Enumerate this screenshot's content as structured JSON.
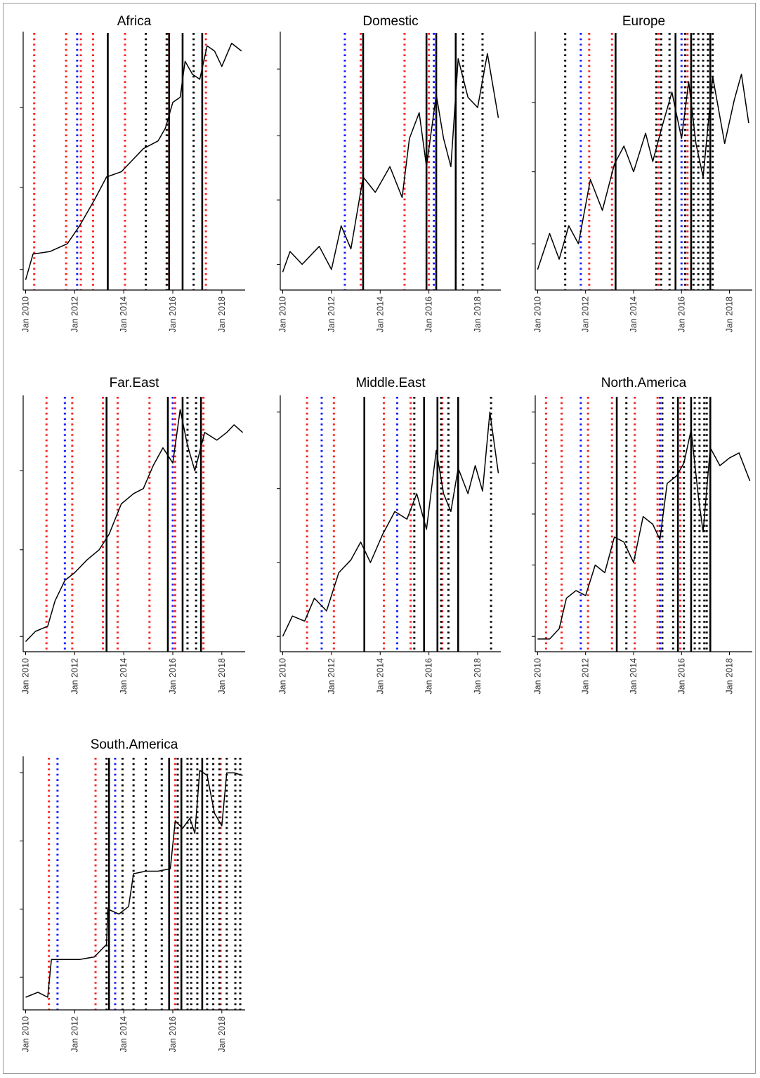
{
  "figure": {
    "type": "small-multiples",
    "rows": 3,
    "cols": 3
  },
  "chart_data": [
    {
      "type": "line",
      "title": "Africa",
      "x_tick_labels": [
        "Jan 2010",
        "Jan 2012",
        "Jan 2014",
        "Jan 2016",
        "Jan 2018"
      ],
      "x_range": [
        2009.9,
        2018.95
      ],
      "y_range": [
        0,
        1
      ],
      "y_ticks_unlabeled": [
        0.08,
        0.4,
        0.71
      ],
      "series_points": [
        [
          2010,
          0.04
        ],
        [
          2010.3,
          0.14
        ],
        [
          2011,
          0.15
        ],
        [
          2011.7,
          0.18
        ],
        [
          2012.2,
          0.25
        ],
        [
          2012.8,
          0.35
        ],
        [
          2013.3,
          0.44
        ],
        [
          2013.9,
          0.46
        ],
        [
          2014.3,
          0.5
        ],
        [
          2014.8,
          0.55
        ],
        [
          2015.4,
          0.58
        ],
        [
          2015.7,
          0.63
        ],
        [
          2016,
          0.73
        ],
        [
          2016.3,
          0.75
        ],
        [
          2016.5,
          0.89
        ],
        [
          2016.8,
          0.84
        ],
        [
          2017.1,
          0.82
        ],
        [
          2017.4,
          0.95
        ],
        [
          2017.7,
          0.93
        ],
        [
          2018,
          0.87
        ],
        [
          2018.4,
          0.96
        ],
        [
          2018.8,
          0.93
        ]
      ],
      "events": {
        "solid_black": [
          2013.35,
          2015.85,
          2016.4,
          2017.2
        ],
        "dotted_red": [
          2010.35,
          2011.65,
          2012.25,
          2012.75,
          2014.05,
          2015.8,
          2017.35
        ],
        "dotted_blue": [
          2012.1
        ],
        "dotted_black": [
          2014.9,
          2015.75,
          2016.85
        ]
      }
    },
    {
      "type": "line",
      "title": "Domestic",
      "x_tick_labels": [
        "Jan 2010",
        "Jan 2012",
        "Jan 2014",
        "Jan 2016",
        "Jan 2018"
      ],
      "x_range": [
        2009.9,
        2018.95
      ],
      "y_range": [
        0,
        1
      ],
      "y_ticks_unlabeled": [
        0.1,
        0.35,
        0.6,
        0.86
      ],
      "series_points": [
        [
          2010,
          0.07
        ],
        [
          2010.3,
          0.15
        ],
        [
          2010.8,
          0.1
        ],
        [
          2011.5,
          0.17
        ],
        [
          2012,
          0.08
        ],
        [
          2012.4,
          0.25
        ],
        [
          2012.8,
          0.16
        ],
        [
          2013.3,
          0.44
        ],
        [
          2013.8,
          0.38
        ],
        [
          2014.4,
          0.48
        ],
        [
          2014.9,
          0.36
        ],
        [
          2015.2,
          0.59
        ],
        [
          2015.6,
          0.69
        ],
        [
          2015.9,
          0.48
        ],
        [
          2016.3,
          0.76
        ],
        [
          2016.6,
          0.59
        ],
        [
          2016.9,
          0.48
        ],
        [
          2017.2,
          0.9
        ],
        [
          2017.6,
          0.75
        ],
        [
          2018,
          0.71
        ],
        [
          2018.4,
          0.92
        ],
        [
          2018.85,
          0.67
        ]
      ],
      "events": {
        "solid_black": [
          2013.3,
          2015.9,
          2016.3,
          2017.1
        ],
        "dotted_red": [
          2013.2,
          2015.0,
          2016.0
        ],
        "dotted_blue": [
          2012.55,
          2016.2
        ],
        "dotted_black": [
          2017.4,
          2018.2
        ]
      }
    },
    {
      "type": "line",
      "title": "Europe",
      "x_tick_labels": [
        "Jan 2010",
        "Jan 2012",
        "Jan 2014",
        "Jan 2016",
        "Jan 2018"
      ],
      "x_range": [
        2009.9,
        2018.95
      ],
      "y_range": [
        0,
        1
      ],
      "y_ticks_unlabeled": [
        0.18,
        0.46,
        0.73
      ],
      "series_points": [
        [
          2010,
          0.08
        ],
        [
          2010.5,
          0.22
        ],
        [
          2010.9,
          0.12
        ],
        [
          2011.3,
          0.25
        ],
        [
          2011.7,
          0.18
        ],
        [
          2012.2,
          0.43
        ],
        [
          2012.7,
          0.31
        ],
        [
          2013.2,
          0.49
        ],
        [
          2013.6,
          0.56
        ],
        [
          2014,
          0.46
        ],
        [
          2014.5,
          0.61
        ],
        [
          2014.8,
          0.5
        ],
        [
          2015.2,
          0.64
        ],
        [
          2015.6,
          0.77
        ],
        [
          2016,
          0.59
        ],
        [
          2016.3,
          0.81
        ],
        [
          2016.6,
          0.57
        ],
        [
          2016.9,
          0.44
        ],
        [
          2017.3,
          0.83
        ],
        [
          2017.8,
          0.57
        ],
        [
          2018.2,
          0.74
        ],
        [
          2018.5,
          0.84
        ],
        [
          2018.8,
          0.65
        ]
      ],
      "events": {
        "solid_black": [
          2013.25,
          2015.75,
          2016.4,
          2017.2
        ],
        "dotted_red": [
          2012.15,
          2013.1,
          2015.05,
          2016.25
        ],
        "dotted_blue": [
          2011.8,
          2016.0
        ],
        "dotted_black": [
          2011.15,
          2014.95,
          2015.15,
          2015.5,
          2016.15,
          2016.5,
          2016.7,
          2016.9,
          2017.1,
          2017.3
        ]
      }
    },
    {
      "type": "line",
      "title": "Far.East",
      "x_tick_labels": [
        "Jan 2010",
        "Jan 2012",
        "Jan 2014",
        "Jan 2016",
        "Jan 2018"
      ],
      "x_range": [
        2009.9,
        2018.95
      ],
      "y_range": [
        0,
        1
      ],
      "y_ticks_unlabeled": [
        0.06,
        0.4,
        0.71
      ],
      "series_points": [
        [
          2010,
          0.04
        ],
        [
          2010.4,
          0.08
        ],
        [
          2010.9,
          0.1
        ],
        [
          2011.2,
          0.2
        ],
        [
          2011.6,
          0.28
        ],
        [
          2012,
          0.31
        ],
        [
          2012.5,
          0.36
        ],
        [
          2013,
          0.4
        ],
        [
          2013.4,
          0.46
        ],
        [
          2013.9,
          0.58
        ],
        [
          2014.4,
          0.62
        ],
        [
          2014.8,
          0.64
        ],
        [
          2015.2,
          0.73
        ],
        [
          2015.6,
          0.8
        ],
        [
          2016,
          0.74
        ],
        [
          2016.3,
          0.95
        ],
        [
          2016.6,
          0.81
        ],
        [
          2016.9,
          0.71
        ],
        [
          2017.3,
          0.86
        ],
        [
          2017.8,
          0.83
        ],
        [
          2018.2,
          0.86
        ],
        [
          2018.5,
          0.89
        ],
        [
          2018.85,
          0.86
        ]
      ],
      "events": {
        "solid_black": [
          2013.3,
          2015.8,
          2016.4,
          2017.15
        ],
        "dotted_red": [
          2010.85,
          2011.9,
          2013.15,
          2013.75,
          2015.05,
          2016.1,
          2017.25
        ],
        "dotted_blue": [
          2011.6,
          2016.0
        ],
        "dotted_black": [
          2016.6,
          2016.95
        ]
      }
    },
    {
      "type": "line",
      "title": "Middle.East",
      "x_tick_labels": [
        "Jan 2010",
        "Jan 2012",
        "Jan 2014",
        "Jan 2016",
        "Jan 2018"
      ],
      "x_range": [
        2009.9,
        2018.95
      ],
      "y_range": [
        0,
        1
      ],
      "y_ticks_unlabeled": [
        0.06,
        0.35,
        0.64,
        0.94
      ],
      "series_points": [
        [
          2010,
          0.06
        ],
        [
          2010.4,
          0.14
        ],
        [
          2010.9,
          0.12
        ],
        [
          2011.3,
          0.21
        ],
        [
          2011.8,
          0.16
        ],
        [
          2012.3,
          0.31
        ],
        [
          2012.8,
          0.36
        ],
        [
          2013.2,
          0.43
        ],
        [
          2013.6,
          0.35
        ],
        [
          2014.1,
          0.46
        ],
        [
          2014.6,
          0.55
        ],
        [
          2015.1,
          0.52
        ],
        [
          2015.5,
          0.62
        ],
        [
          2015.9,
          0.48
        ],
        [
          2016.3,
          0.79
        ],
        [
          2016.6,
          0.62
        ],
        [
          2016.9,
          0.55
        ],
        [
          2017.2,
          0.72
        ],
        [
          2017.6,
          0.62
        ],
        [
          2017.9,
          0.73
        ],
        [
          2018.2,
          0.63
        ],
        [
          2018.5,
          0.94
        ],
        [
          2018.85,
          0.7
        ]
      ],
      "events": {
        "solid_black": [
          2013.35,
          2015.8,
          2016.35,
          2017.2
        ],
        "dotted_red": [
          2011.0,
          2012.1,
          2014.15,
          2015.25,
          2016.55
        ],
        "dotted_blue": [
          2011.6,
          2014.7
        ],
        "dotted_black": [
          2015.4,
          2016.5,
          2016.8,
          2018.55
        ]
      }
    },
    {
      "type": "line",
      "title": "North.America",
      "x_tick_labels": [
        "Jan 2010",
        "Jan 2012",
        "Jan 2014",
        "Jan 2016",
        "Jan 2018"
      ],
      "x_range": [
        2009.9,
        2018.95
      ],
      "y_range": [
        0,
        1
      ],
      "y_ticks_unlabeled": [
        0.06,
        0.34,
        0.54,
        0.74,
        0.94
      ],
      "series_points": [
        [
          2010,
          0.05
        ],
        [
          2010.5,
          0.05
        ],
        [
          2010.9,
          0.09
        ],
        [
          2011.2,
          0.21
        ],
        [
          2011.6,
          0.24
        ],
        [
          2012,
          0.22
        ],
        [
          2012.4,
          0.34
        ],
        [
          2012.8,
          0.31
        ],
        [
          2013.2,
          0.45
        ],
        [
          2013.6,
          0.43
        ],
        [
          2014,
          0.35
        ],
        [
          2014.4,
          0.53
        ],
        [
          2014.8,
          0.5
        ],
        [
          2015.1,
          0.44
        ],
        [
          2015.4,
          0.66
        ],
        [
          2015.8,
          0.69
        ],
        [
          2016.1,
          0.74
        ],
        [
          2016.4,
          0.87
        ],
        [
          2016.7,
          0.61
        ],
        [
          2016.9,
          0.47
        ],
        [
          2017.2,
          0.8
        ],
        [
          2017.6,
          0.73
        ],
        [
          2018,
          0.76
        ],
        [
          2018.4,
          0.78
        ],
        [
          2018.85,
          0.67
        ]
      ],
      "events": {
        "solid_black": [
          2013.3,
          2015.85,
          2016.4,
          2017.2
        ],
        "dotted_red": [
          2010.35,
          2011.0,
          2012.1,
          2013.1,
          2014.05,
          2015.0,
          2015.95
        ],
        "dotted_blue": [
          2011.8,
          2015.1
        ],
        "dotted_black": [
          2013.7,
          2015.2,
          2015.65,
          2016.1,
          2016.55,
          2016.75,
          2016.95,
          2017.05
        ]
      }
    },
    {
      "type": "line",
      "title": "South.America",
      "x_tick_labels": [
        "Jan 2010",
        "Jan 2012",
        "Jan 2014",
        "Jan 2016",
        "Jan 2018"
      ],
      "x_range": [
        2009.9,
        2018.95
      ],
      "y_range": [
        0,
        1
      ],
      "y_ticks_unlabeled": [
        0.13,
        0.4,
        0.67,
        0.94
      ],
      "series_points": [
        [
          2010,
          0.05
        ],
        [
          2010.5,
          0.07
        ],
        [
          2010.9,
          0.05
        ],
        [
          2011.05,
          0.2
        ],
        [
          2011.6,
          0.2
        ],
        [
          2012.2,
          0.2
        ],
        [
          2012.8,
          0.21
        ],
        [
          2013.3,
          0.26
        ],
        [
          2013.35,
          0.4
        ],
        [
          2013.8,
          0.38
        ],
        [
          2014.2,
          0.41
        ],
        [
          2014.4,
          0.54
        ],
        [
          2014.9,
          0.55
        ],
        [
          2015.4,
          0.55
        ],
        [
          2015.9,
          0.56
        ],
        [
          2016.1,
          0.75
        ],
        [
          2016.4,
          0.72
        ],
        [
          2016.7,
          0.76
        ],
        [
          2016.9,
          0.7
        ],
        [
          2017.1,
          0.95
        ],
        [
          2017.4,
          0.93
        ],
        [
          2017.7,
          0.78
        ],
        [
          2018.0,
          0.73
        ],
        [
          2018.2,
          0.94
        ],
        [
          2018.5,
          0.94
        ],
        [
          2018.85,
          0.93
        ]
      ],
      "events": {
        "solid_black": [
          2013.4,
          2015.85,
          2016.35,
          2017.2
        ],
        "dotted_red": [
          2010.95,
          2012.85,
          2016.1,
          2017.95
        ],
        "dotted_blue": [
          2011.3,
          2013.65
        ],
        "dotted_black": [
          2013.3,
          2013.95,
          2014.4,
          2014.9,
          2015.55,
          2016.2,
          2016.6,
          2016.75,
          2017.0,
          2017.4,
          2017.65,
          2017.9,
          2018.2,
          2018.55,
          2018.75
        ]
      }
    }
  ],
  "colors": {
    "series": "#000000",
    "dotted_red": "#ff2020",
    "dotted_blue": "#1a1aff",
    "dotted_black": "#000000",
    "solid_black": "#000000",
    "tick_label": "#333333",
    "frame_border": "#9a9a9a"
  }
}
